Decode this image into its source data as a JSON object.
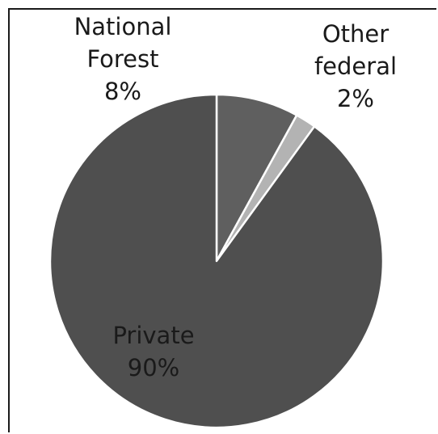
{
  "chart_data": {
    "type": "pie",
    "title": "",
    "slices": [
      {
        "name": "National Forest",
        "label_lines": [
          "National",
          "Forest"
        ],
        "value": 8,
        "value_label": "8%",
        "color": "#5f5f5f",
        "label_color": "#1a1a1a"
      },
      {
        "name": "Other federal",
        "label_lines": [
          "Other",
          "federal"
        ],
        "value": 2,
        "value_label": "2%",
        "color": "#b3b3b3",
        "label_color": "#1a1a1a"
      },
      {
        "name": "Private",
        "label_lines": [
          "Private"
        ],
        "value": 90,
        "value_label": "90%",
        "color": "#4f4f4f",
        "label_color": "#1a1a1a"
      }
    ],
    "start_angle_deg": 0,
    "direction": "clockwise",
    "slice_border_color": "#ffffff"
  }
}
